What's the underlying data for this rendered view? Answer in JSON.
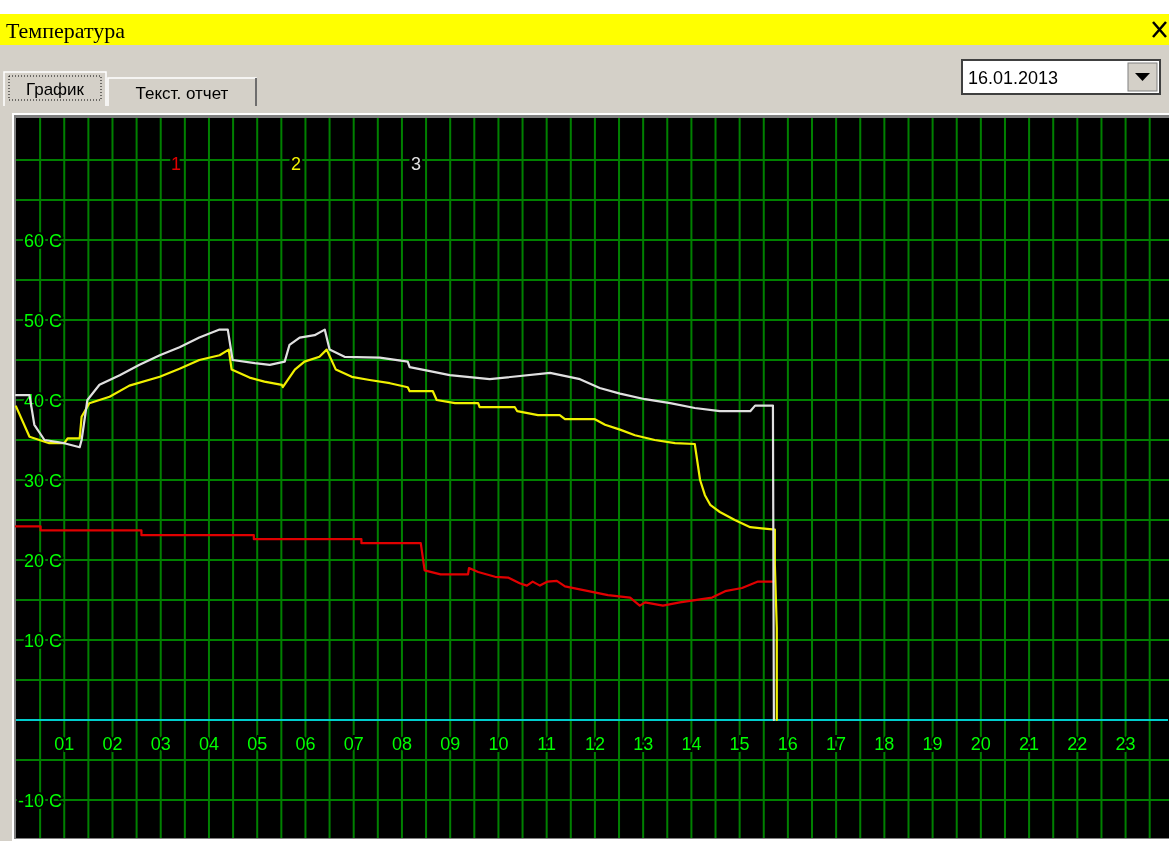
{
  "chart_data": {
    "type": "line",
    "title": "Температура",
    "annotations": [
      "График",
      "Текст. отчет",
      "16.01.2013"
    ],
    "xlim": [
      0,
      23.9
    ],
    "ylim": [
      -14.75,
      75.25
    ],
    "xticks": [
      {
        "value": 0.5,
        "label": null
      },
      {
        "value": 1,
        "label": "01"
      },
      {
        "value": 1.5,
        "label": null
      },
      {
        "value": 2,
        "label": "02"
      },
      {
        "value": 2.5,
        "label": null
      },
      {
        "value": 3,
        "label": "03"
      },
      {
        "value": 3.5,
        "label": null
      },
      {
        "value": 4,
        "label": "04"
      },
      {
        "value": 4.5,
        "label": null
      },
      {
        "value": 5,
        "label": "05"
      },
      {
        "value": 5.5,
        "label": null
      },
      {
        "value": 6,
        "label": "06"
      },
      {
        "value": 6.5,
        "label": null
      },
      {
        "value": 7,
        "label": "07"
      },
      {
        "value": 7.5,
        "label": null
      },
      {
        "value": 8,
        "label": "08"
      },
      {
        "value": 8.5,
        "label": null
      },
      {
        "value": 9,
        "label": "09"
      },
      {
        "value": 9.5,
        "label": null
      },
      {
        "value": 10,
        "label": "10"
      },
      {
        "value": 10.5,
        "label": null
      },
      {
        "value": 11,
        "label": "11"
      },
      {
        "value": 11.5,
        "label": null
      },
      {
        "value": 12,
        "label": "12"
      },
      {
        "value": 12.5,
        "label": null
      },
      {
        "value": 13,
        "label": "13"
      },
      {
        "value": 13.5,
        "label": null
      },
      {
        "value": 14,
        "label": "14"
      },
      {
        "value": 14.5,
        "label": null
      },
      {
        "value": 15,
        "label": "15"
      },
      {
        "value": 15.5,
        "label": null
      },
      {
        "value": 16,
        "label": "16"
      },
      {
        "value": 16.5,
        "label": null
      },
      {
        "value": 17,
        "label": "17"
      },
      {
        "value": 17.5,
        "label": null
      },
      {
        "value": 18,
        "label": "18"
      },
      {
        "value": 18.5,
        "label": null
      },
      {
        "value": 19,
        "label": "19"
      },
      {
        "value": 19.5,
        "label": null
      },
      {
        "value": 20,
        "label": "20"
      },
      {
        "value": 20.5,
        "label": null
      },
      {
        "value": 21,
        "label": "21"
      },
      {
        "value": 21.5,
        "label": null
      },
      {
        "value": 22,
        "label": "22"
      },
      {
        "value": 22.5,
        "label": null
      },
      {
        "value": 23,
        "label": "23"
      },
      {
        "value": 23.5,
        "label": null
      }
    ],
    "yticks": [
      {
        "value": -10,
        "label": "-10 C"
      },
      {
        "value": -5,
        "label": null
      },
      {
        "value": 5,
        "label": null
      },
      {
        "value": 10,
        "label": "10 C"
      },
      {
        "value": 15,
        "label": null
      },
      {
        "value": 20,
        "label": "20 C"
      },
      {
        "value": 25,
        "label": null
      },
      {
        "value": 30,
        "label": "30 C"
      },
      {
        "value": 35,
        "label": null
      },
      {
        "value": 40,
        "label": "40 C"
      },
      {
        "value": 45,
        "label": null
      },
      {
        "value": 50,
        "label": "50 C"
      },
      {
        "value": 55,
        "label": null
      },
      {
        "value": 60,
        "label": "60 C"
      },
      {
        "value": 65,
        "label": null
      },
      {
        "value": 70,
        "label": null
      }
    ],
    "grid": true,
    "legend": "top",
    "marker": "none",
    "line_style": "solid",
    "series": [
      {
        "name": "1",
        "color": "#e00000",
        "x": [
          0,
          0.51,
          0.51,
          2.6,
          2.6,
          4.93,
          4.93,
          7.16,
          7.16,
          8.39,
          8.47,
          8.8,
          9.37,
          9.39,
          9.58,
          9.93,
          10.2,
          10.44,
          10.59,
          10.71,
          10.86,
          11.02,
          11.21,
          11.38,
          11.79,
          12.27,
          12.73,
          12.93,
          13.04,
          13.41,
          13.76,
          14.43,
          14.7,
          15.05,
          15.38,
          15.71
        ],
        "values": [
          24.2,
          24.2,
          23.7,
          23.7,
          23.1,
          23.1,
          22.6,
          22.6,
          22.1,
          22.1,
          18.7,
          18.2,
          18.2,
          19,
          18.5,
          17.9,
          17.8,
          17.1,
          16.8,
          17.3,
          16.8,
          17.3,
          17.4,
          16.7,
          16.2,
          15.6,
          15.3,
          14.3,
          14.7,
          14.3,
          14.7,
          15.3,
          16.1,
          16.5,
          17.3,
          17.3
        ]
      },
      {
        "name": "2",
        "color": "#f0f000",
        "x": [
          0,
          0.28,
          0.69,
          1.0,
          1.07,
          1.32,
          1.36,
          1.52,
          1.94,
          2.35,
          2.98,
          3.39,
          3.8,
          4.22,
          4.41,
          4.47,
          4.84,
          5.15,
          5.51,
          5.53,
          5.78,
          5.98,
          6.29,
          6.44,
          6.63,
          6.96,
          7.33,
          7.75,
          8.12,
          8.16,
          8.64,
          8.72,
          9.1,
          9.58,
          9.61,
          10.34,
          10.39,
          10.82,
          11.27,
          11.38,
          12.0,
          12.21,
          12.52,
          12.83,
          13.24,
          13.66,
          14.07,
          14.18,
          14.28,
          14.39,
          14.59,
          14.9,
          15.22,
          15.73,
          15.73,
          15.77,
          15.77
        ],
        "values": [
          39.2,
          35.4,
          34.6,
          34.6,
          35.2,
          35.2,
          37.9,
          39.6,
          40.4,
          41.8,
          42.9,
          43.9,
          45,
          45.6,
          46.3,
          43.8,
          42.8,
          42.3,
          41.9,
          41.6,
          43.8,
          44.8,
          45.4,
          46.3,
          43.8,
          42.9,
          42.5,
          42.1,
          41.6,
          41.1,
          41.1,
          40,
          39.6,
          39.6,
          39.1,
          39.1,
          38.6,
          38.1,
          38.1,
          37.6,
          37.6,
          36.9,
          36.3,
          35.6,
          35,
          34.6,
          34.5,
          30,
          28.1,
          26.9,
          26,
          25,
          24.1,
          23.8,
          19.4,
          11.5,
          0
        ]
      },
      {
        "name": "3",
        "color": "#e0e0e0",
        "x": [
          0,
          0.28,
          0.38,
          0.59,
          1.0,
          1.32,
          1.36,
          1.48,
          1.73,
          2.15,
          2.56,
          2.98,
          3.39,
          3.8,
          4.22,
          4.39,
          4.49,
          4.95,
          5.26,
          5.57,
          5.67,
          5.88,
          6.19,
          6.4,
          6.5,
          6.81,
          7.54,
          8.12,
          8.16,
          8.58,
          8.99,
          9.82,
          11.07,
          11.69,
          12.1,
          12.52,
          13.04,
          13.56,
          14.07,
          14.59,
          15.22,
          15.32,
          15.69,
          15.71
        ],
        "values": [
          40.6,
          40.6,
          36.9,
          35,
          34.6,
          34.1,
          35,
          40,
          41.9,
          43.1,
          44.4,
          45.6,
          46.6,
          47.8,
          48.8,
          48.8,
          45,
          44.6,
          44.4,
          44.8,
          46.9,
          47.8,
          48.1,
          48.8,
          46.3,
          45.4,
          45.3,
          44.8,
          44.1,
          43.6,
          43.1,
          42.6,
          43.4,
          42.6,
          41.5,
          40.8,
          40.1,
          39.6,
          39,
          38.6,
          38.6,
          39.3,
          39.3,
          0
        ]
      }
    ]
  }
}
